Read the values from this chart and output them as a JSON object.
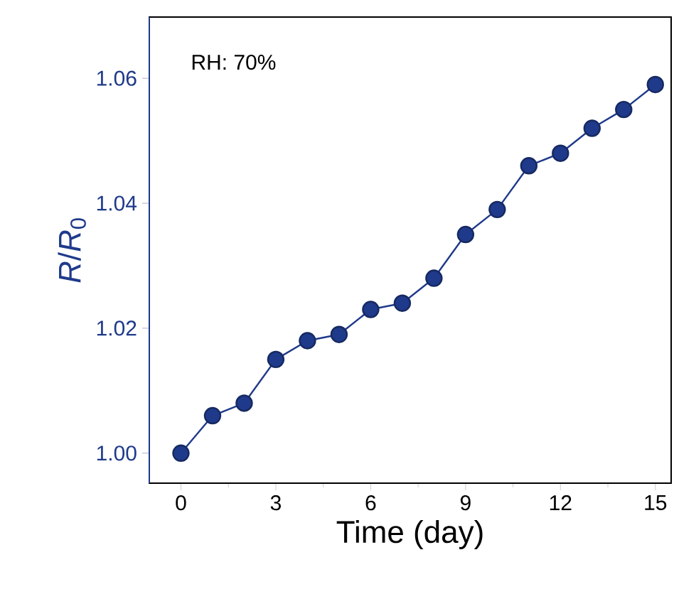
{
  "chart_data": {
    "type": "line",
    "xlabel": "Time (day)",
    "ylabel": "*R*/*R*$_{0}$",
    "annotations": [
      "RH: 70%"
    ],
    "x": [
      0,
      1,
      2,
      3,
      4,
      5,
      6,
      7,
      8,
      9,
      10,
      11,
      12,
      13,
      14,
      15
    ],
    "series": [
      {
        "color": "#1f3a8a",
        "values": [
          1.0,
          1.006,
          1.008,
          1.015,
          1.018,
          1.019,
          1.023,
          1.024,
          1.028,
          1.035,
          1.039,
          1.046,
          1.048,
          1.052,
          1.055,
          1.059
        ]
      }
    ],
    "xlim": [
      -1,
      15.5
    ],
    "ylim": [
      0.9952,
      1.0698
    ],
    "xticks": [
      0,
      3,
      6,
      9,
      12,
      15
    ],
    "yticks": [
      {
        "value": 1.0,
        "label": "1.00"
      },
      {
        "value": 1.02,
        "label": "1.02"
      },
      {
        "value": 1.04,
        "label": "1.04"
      },
      {
        "value": 1.06,
        "label": "1.06"
      }
    ],
    "marker": "circle",
    "line_style": "solid",
    "grid": false
  }
}
